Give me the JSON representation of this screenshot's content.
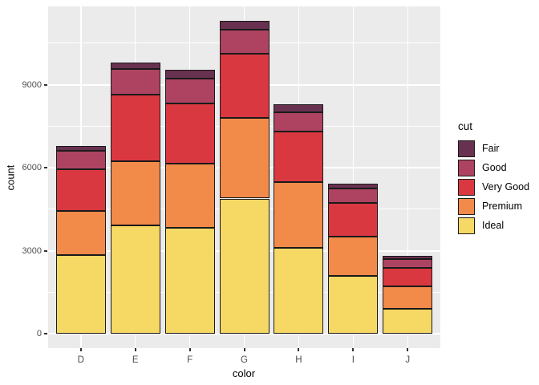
{
  "figure": {
    "background": "#FFFFFF",
    "panel_background": "#EBEBEB",
    "gridline_color": "#FFFFFF",
    "axis_text_color": "#4D4D4D",
    "axis_title_color": "#000000",
    "bar_outline_color": "#1A1A1A"
  },
  "chart_data": {
    "type": "bar",
    "stacked": true,
    "title": "",
    "xlabel": "color",
    "ylabel": "count",
    "categories": [
      "D",
      "E",
      "F",
      "G",
      "H",
      "I",
      "J"
    ],
    "series": [
      {
        "name": "Fair",
        "color": "#693150",
        "values": [
          163,
          224,
          312,
          314,
          303,
          175,
          119
        ]
      },
      {
        "name": "Good",
        "color": "#AD4361",
        "values": [
          662,
          933,
          909,
          871,
          702,
          522,
          307
        ]
      },
      {
        "name": "Very Good",
        "color": "#DA3841",
        "values": [
          1513,
          2400,
          2164,
          2299,
          1824,
          1204,
          678
        ]
      },
      {
        "name": "Premium",
        "color": "#F28A4A",
        "values": [
          1603,
          2337,
          2331,
          2924,
          2360,
          1428,
          808
        ]
      },
      {
        "name": "Ideal",
        "color": "#F6D865",
        "values": [
          2834,
          3903,
          3826,
          4884,
          3115,
          2093,
          896
        ]
      }
    ],
    "stack_order_bottom_to_top": [
      "Ideal",
      "Premium",
      "Very Good",
      "Good",
      "Fair"
    ],
    "category_totals": [
      6775,
      9797,
      9542,
      11292,
      8304,
      5422,
      2808
    ],
    "y_ticks": [
      0,
      3000,
      6000,
      9000
    ],
    "y_minor_ticks": [
      1500,
      4500,
      7500,
      10500
    ],
    "ylim": [
      0,
      11292
    ],
    "grid": true,
    "legend": {
      "title": "cut",
      "position": "right",
      "entries": [
        "Fair",
        "Good",
        "Very Good",
        "Premium",
        "Ideal"
      ]
    }
  }
}
